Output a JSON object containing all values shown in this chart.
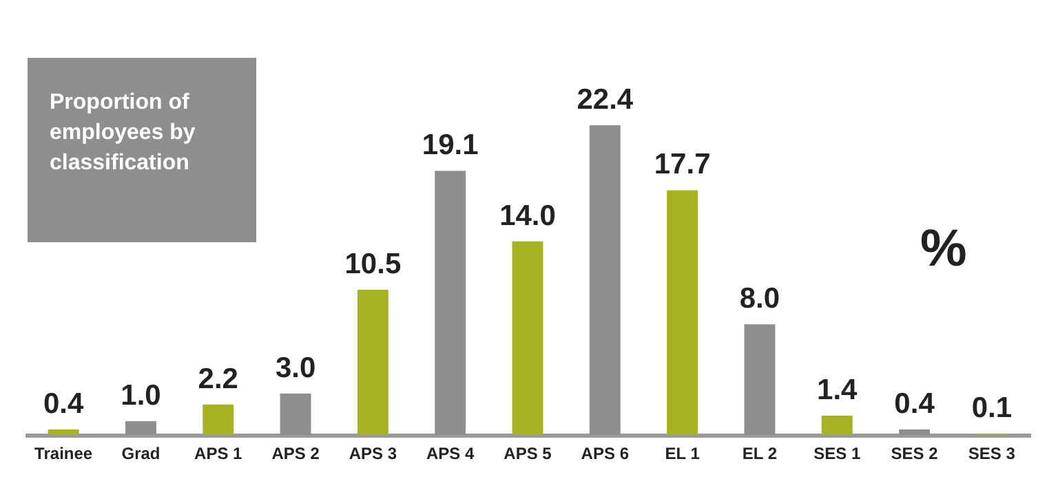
{
  "chart_data": {
    "type": "bar",
    "title": "Proportion of employees by classification",
    "categories": [
      "Trainee",
      "Grad",
      "APS 1",
      "APS 2",
      "APS 3",
      "APS 4",
      "APS 5",
      "APS 6",
      "EL 1",
      "EL 2",
      "SES 1",
      "SES 2",
      "SES 3"
    ],
    "values": [
      0.4,
      1.0,
      2.2,
      3.0,
      10.5,
      19.1,
      14.0,
      22.4,
      17.7,
      8.0,
      1.4,
      0.4,
      0.1
    ],
    "value_labels": [
      "0.4",
      "1.0",
      "2.2",
      "3.0",
      "10.5",
      "19.1",
      "14.0",
      "22.4",
      "17.7",
      "8.0",
      "1.4",
      "0.4",
      "0.1"
    ],
    "colors": [
      "#a4b420",
      "#8e8e8e",
      "#a4b420",
      "#8e8e8e",
      "#a4b420",
      "#8e8e8e",
      "#a4b420",
      "#8e8e8e",
      "#a4b420",
      "#8e8e8e",
      "#a4b420",
      "#8e8e8e",
      "#a4b420"
    ],
    "annotations": [
      "%"
    ],
    "grid": false
  }
}
